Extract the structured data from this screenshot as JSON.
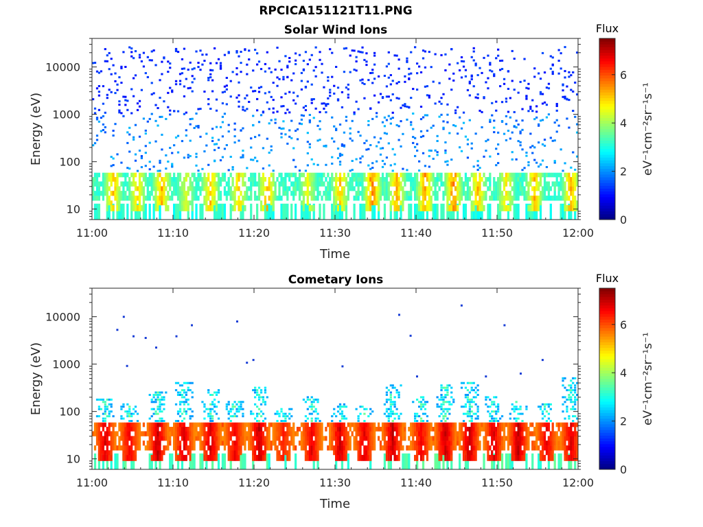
{
  "figure_title": "RPCICA151121T11.PNG",
  "chart_data": [
    {
      "type": "heatmap",
      "title": "Solar Wind Ions",
      "xlabel": "Time",
      "ylabel": "Energy (eV)",
      "x_range": [
        "11:00",
        "12:00"
      ],
      "x_ticks": [
        "11:00",
        "11:10",
        "11:20",
        "11:30",
        "11:40",
        "11:50",
        "12:00"
      ],
      "y_scale": "log",
      "y_range": [
        6,
        40000
      ],
      "y_ticks": [
        "10",
        "100",
        "1000",
        "10000"
      ],
      "colorbar": {
        "title": "Flux",
        "label": "eV⁻¹cm⁻²sr⁻¹s⁻¹",
        "range": [
          0,
          7.5
        ],
        "ticks": [
          "0",
          "2",
          "4",
          "6"
        ],
        "colormap": "jet"
      },
      "features": {
        "sparse_counts": {
          "energy_range_ev": [
            60,
            25000
          ],
          "flux": [
            1.0,
            2.0
          ],
          "density": "scattered"
        },
        "main_band": {
          "energy_range_ev": [
            20,
            60
          ],
          "flux_typical": 3.0,
          "flux_peak": 5.5
        },
        "low_energy_stripe": {
          "energy_range_ev": [
            6,
            14
          ],
          "flux": 2.8
        }
      },
      "bursts": [
        {
          "time_min": 2.5,
          "flux_peak": 5.5
        },
        {
          "time_min": 5.5,
          "flux_peak": 5.2
        },
        {
          "time_min": 8.5,
          "flux_peak": 5.6
        },
        {
          "time_min": 11.5,
          "flux_peak": 4.6
        },
        {
          "time_min": 14.5,
          "flux_peak": 5.5
        },
        {
          "time_min": 18.0,
          "flux_peak": 5.3
        },
        {
          "time_min": 21.5,
          "flux_peak": 5.6
        },
        {
          "time_min": 26.5,
          "flux_peak": 4.8
        },
        {
          "time_min": 30.5,
          "flux_peak": 5.4
        },
        {
          "time_min": 34.5,
          "flux_peak": 6.2
        },
        {
          "time_min": 37.5,
          "flux_peak": 5.6
        },
        {
          "time_min": 41.0,
          "flux_peak": 5.8
        },
        {
          "time_min": 44.5,
          "flux_peak": 6.0
        },
        {
          "time_min": 47.5,
          "flux_peak": 5.5
        },
        {
          "time_min": 51.0,
          "flux_peak": 5.0
        },
        {
          "time_min": 54.5,
          "flux_peak": 5.5
        },
        {
          "time_min": 59.0,
          "flux_peak": 5.6
        }
      ]
    },
    {
      "type": "heatmap",
      "title": "Cometary Ions",
      "xlabel": "Time",
      "ylabel": "Energy (eV)",
      "x_range": [
        "11:00",
        "12:00"
      ],
      "x_ticks": [
        "11:00",
        "11:10",
        "11:20",
        "11:30",
        "11:40",
        "11:50",
        "12:00"
      ],
      "y_scale": "log",
      "y_range": [
        6,
        40000
      ],
      "y_ticks": [
        "10",
        "100",
        "1000",
        "10000"
      ],
      "colorbar": {
        "title": "Flux",
        "label": "eV⁻¹cm⁻²sr⁻¹s⁻¹",
        "range": [
          0,
          7.5
        ],
        "ticks": [
          "0",
          "2",
          "4",
          "6"
        ],
        "colormap": "jet"
      },
      "features": {
        "main_band": {
          "energy_range_ev": [
            18,
            60
          ],
          "flux_typical": 5.5,
          "flux_peak": 7.2
        },
        "low_energy_stripe": {
          "energy_range_ev": [
            6,
            12
          ],
          "flux": 3.0
        },
        "high_energy_points": [
          {
            "time_min": 3.0,
            "energy_ev": 5200
          },
          {
            "time_min": 3.8,
            "energy_ev": 9800
          },
          {
            "time_min": 4.2,
            "energy_ev": 900
          },
          {
            "time_min": 5.0,
            "energy_ev": 3800
          },
          {
            "time_min": 6.5,
            "energy_ev": 3500
          },
          {
            "time_min": 7.8,
            "energy_ev": 2200
          },
          {
            "time_min": 10.3,
            "energy_ev": 3800
          },
          {
            "time_min": 12.2,
            "energy_ev": 6500
          },
          {
            "time_min": 17.8,
            "energy_ev": 7800
          },
          {
            "time_min": 19.0,
            "energy_ev": 1050
          },
          {
            "time_min": 19.8,
            "energy_ev": 1200
          },
          {
            "time_min": 30.8,
            "energy_ev": 880
          },
          {
            "time_min": 37.8,
            "energy_ev": 10800
          },
          {
            "time_min": 39.2,
            "energy_ev": 3900
          },
          {
            "time_min": 40.0,
            "energy_ev": 540
          },
          {
            "time_min": 45.5,
            "energy_ev": 17000
          },
          {
            "time_min": 48.5,
            "energy_ev": 540
          },
          {
            "time_min": 50.8,
            "energy_ev": 6500
          },
          {
            "time_min": 52.8,
            "energy_ev": 620
          },
          {
            "time_min": 55.5,
            "energy_ev": 1200
          }
        ]
      },
      "bursts": [
        {
          "time_min": 1.5,
          "plume_top_ev": 180,
          "flux_peak": 7.0
        },
        {
          "time_min": 4.5,
          "plume_top_ev": 150,
          "flux_peak": 6.8
        },
        {
          "time_min": 8.0,
          "plume_top_ev": 250,
          "flux_peak": 7.2
        },
        {
          "time_min": 11.2,
          "plume_top_ev": 400,
          "flux_peak": 7.0
        },
        {
          "time_min": 14.5,
          "plume_top_ev": 280,
          "flux_peak": 7.1
        },
        {
          "time_min": 17.5,
          "plume_top_ev": 160,
          "flux_peak": 6.8
        },
        {
          "time_min": 20.5,
          "plume_top_ev": 320,
          "flux_peak": 7.2
        },
        {
          "time_min": 23.5,
          "plume_top_ev": 110,
          "flux_peak": 6.5
        },
        {
          "time_min": 27.0,
          "plume_top_ev": 200,
          "flux_peak": 6.9
        },
        {
          "time_min": 30.5,
          "plume_top_ev": 140,
          "flux_peak": 7.1
        },
        {
          "time_min": 33.5,
          "plume_top_ev": 130,
          "flux_peak": 7.0
        },
        {
          "time_min": 37.0,
          "plume_top_ev": 350,
          "flux_peak": 7.2
        },
        {
          "time_min": 40.5,
          "plume_top_ev": 200,
          "flux_peak": 6.8
        },
        {
          "time_min": 43.5,
          "plume_top_ev": 350,
          "flux_peak": 7.2
        },
        {
          "time_min": 46.5,
          "plume_top_ev": 400,
          "flux_peak": 7.2
        },
        {
          "time_min": 49.5,
          "plume_top_ev": 200,
          "flux_peak": 7.0
        },
        {
          "time_min": 52.5,
          "plume_top_ev": 160,
          "flux_peak": 7.2
        },
        {
          "time_min": 56.0,
          "plume_top_ev": 150,
          "flux_peak": 6.9
        },
        {
          "time_min": 59.0,
          "plume_top_ev": 500,
          "flux_peak": 7.0
        }
      ]
    }
  ]
}
